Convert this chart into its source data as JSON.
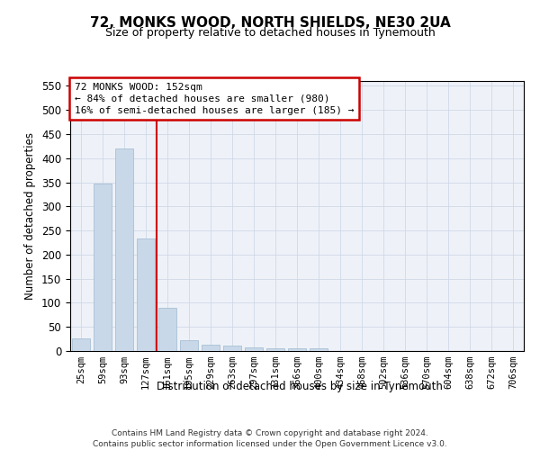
{
  "title": "72, MONKS WOOD, NORTH SHIELDS, NE30 2UA",
  "subtitle": "Size of property relative to detached houses in Tynemouth",
  "xlabel": "Distribution of detached houses by size in Tynemouth",
  "ylabel": "Number of detached properties",
  "bar_labels": [
    "25sqm",
    "59sqm",
    "93sqm",
    "127sqm",
    "161sqm",
    "195sqm",
    "229sqm",
    "263sqm",
    "297sqm",
    "331sqm",
    "366sqm",
    "400sqm",
    "434sqm",
    "468sqm",
    "502sqm",
    "536sqm",
    "570sqm",
    "604sqm",
    "638sqm",
    "672sqm",
    "706sqm"
  ],
  "bar_values": [
    27,
    348,
    420,
    233,
    90,
    23,
    14,
    12,
    7,
    6,
    6,
    5,
    0,
    0,
    0,
    0,
    0,
    0,
    0,
    0,
    0
  ],
  "bar_color": "#c8d8e8",
  "bar_edge_color": "#a0b8d0",
  "grid_color": "#d0d8e8",
  "vline_color": "#cc0000",
  "annotation_text": "72 MONKS WOOD: 152sqm\n← 84% of detached houses are smaller (980)\n16% of semi-detached houses are larger (185) →",
  "annotation_box_color": "#ffffff",
  "annotation_box_edge": "#cc0000",
  "ylim": [
    0,
    560
  ],
  "yticks": [
    0,
    50,
    100,
    150,
    200,
    250,
    300,
    350,
    400,
    450,
    500,
    550
  ],
  "footer_line1": "Contains HM Land Registry data © Crown copyright and database right 2024.",
  "footer_line2": "Contains public sector information licensed under the Open Government Licence v3.0.",
  "background_color": "#eef2f8"
}
